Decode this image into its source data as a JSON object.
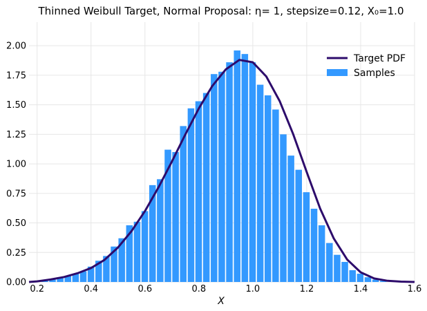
{
  "chart_data": {
    "type": "bar",
    "title": "Thinned Weibull Target, Normal Proposal: η= 1, stepsize=0.12, X₀=1.0",
    "xlabel": "X",
    "ylabel": "",
    "xlim": [
      0.17,
      1.6
    ],
    "ylim": [
      0,
      2.2
    ],
    "grid": true,
    "legend_position": "top-right",
    "xticks": [
      "0.2",
      "0.4",
      "0.6",
      "0.8",
      "1.0",
      "1.2",
      "1.4",
      "1.6"
    ],
    "yticks": [
      "0.00",
      "0.25",
      "0.50",
      "0.75",
      "1.00",
      "1.25",
      "1.50",
      "1.75",
      "2.00"
    ],
    "bin_width": 0.0285,
    "series": [
      {
        "name": "Samples",
        "kind": "bar",
        "color": "#3399ff",
        "x": [
          0.2,
          0.2285,
          0.2571,
          0.2856,
          0.3141,
          0.3427,
          0.3712,
          0.3997,
          0.4283,
          0.4568,
          0.4853,
          0.5139,
          0.5424,
          0.5709,
          0.5995,
          0.628,
          0.6565,
          0.6851,
          0.7136,
          0.7421,
          0.7707,
          0.7992,
          0.8277,
          0.8563,
          0.8848,
          0.9133,
          0.9419,
          0.9704,
          0.9989,
          1.0275,
          1.056,
          1.0845,
          1.1131,
          1.1416,
          1.1701,
          1.1987,
          1.2272,
          1.2557,
          1.2843,
          1.3128,
          1.3413,
          1.3699,
          1.3984,
          1.4269,
          1.4555,
          1.484,
          1.5125
        ],
        "values": [
          0.0,
          0.01,
          0.02,
          0.04,
          0.05,
          0.07,
          0.09,
          0.13,
          0.18,
          0.22,
          0.3,
          0.37,
          0.48,
          0.51,
          0.6,
          0.82,
          0.87,
          1.12,
          1.1,
          1.32,
          1.47,
          1.53,
          1.6,
          1.76,
          1.78,
          1.86,
          1.96,
          1.93,
          1.86,
          1.67,
          1.58,
          1.46,
          1.25,
          1.07,
          0.95,
          0.76,
          0.62,
          0.48,
          0.33,
          0.23,
          0.17,
          0.1,
          0.07,
          0.04,
          0.02,
          0.01,
          0.0
        ]
      },
      {
        "name": "Target PDF",
        "kind": "line",
        "color": "#2d0b6b",
        "x": [
          0.17,
          0.2,
          0.25,
          0.3,
          0.35,
          0.4,
          0.45,
          0.5,
          0.55,
          0.6,
          0.65,
          0.7,
          0.75,
          0.8,
          0.85,
          0.9,
          0.95,
          1.0,
          1.05,
          1.1,
          1.15,
          1.2,
          1.25,
          1.3,
          1.35,
          1.4,
          1.45,
          1.5,
          1.55,
          1.6
        ],
        "values": [
          0.0,
          0.005,
          0.021,
          0.042,
          0.074,
          0.118,
          0.187,
          0.292,
          0.43,
          0.6,
          0.8,
          1.02,
          1.25,
          1.47,
          1.66,
          1.8,
          1.88,
          1.86,
          1.74,
          1.53,
          1.25,
          0.93,
          0.62,
          0.37,
          0.19,
          0.082,
          0.03,
          0.01,
          0.003,
          0.0
        ]
      }
    ]
  }
}
